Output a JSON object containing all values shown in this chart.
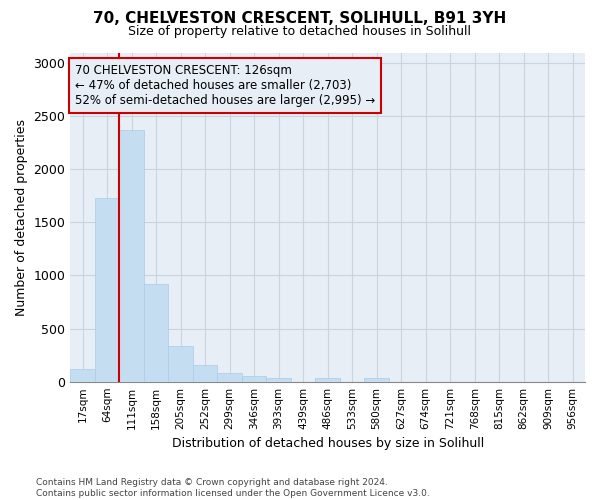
{
  "title_line1": "70, CHELVESTON CRESCENT, SOLIHULL, B91 3YH",
  "title_line2": "Size of property relative to detached houses in Solihull",
  "xlabel": "Distribution of detached houses by size in Solihull",
  "ylabel": "Number of detached properties",
  "footer_line1": "Contains HM Land Registry data © Crown copyright and database right 2024.",
  "footer_line2": "Contains public sector information licensed under the Open Government Licence v3.0.",
  "bin_labels": [
    "17sqm",
    "64sqm",
    "111sqm",
    "158sqm",
    "205sqm",
    "252sqm",
    "299sqm",
    "346sqm",
    "393sqm",
    "439sqm",
    "486sqm",
    "533sqm",
    "580sqm",
    "627sqm",
    "674sqm",
    "721sqm",
    "768sqm",
    "815sqm",
    "862sqm",
    "909sqm",
    "956sqm"
  ],
  "bar_values": [
    120,
    1730,
    2370,
    920,
    340,
    155,
    80,
    50,
    30,
    0,
    30,
    0,
    30,
    0,
    0,
    0,
    0,
    0,
    0,
    0,
    0
  ],
  "bar_color": "#c5ddf0",
  "bar_edgecolor": "#aacce8",
  "property_bin_index": 2,
  "redline_label": "70 CHELVESTON CRESCENT: 126sqm",
  "annotation_line1": "← 47% of detached houses are smaller (2,703)",
  "annotation_line2": "52% of semi-detached houses are larger (2,995) →",
  "vline_color": "#cc0000",
  "annotation_box_edgecolor": "#cc0000",
  "ylim": [
    0,
    3100
  ],
  "yticks": [
    0,
    500,
    1000,
    1500,
    2000,
    2500,
    3000
  ],
  "grid_color": "#c8d4e0",
  "background_color": "#ffffff",
  "plot_bg_color": "#e8eef6"
}
